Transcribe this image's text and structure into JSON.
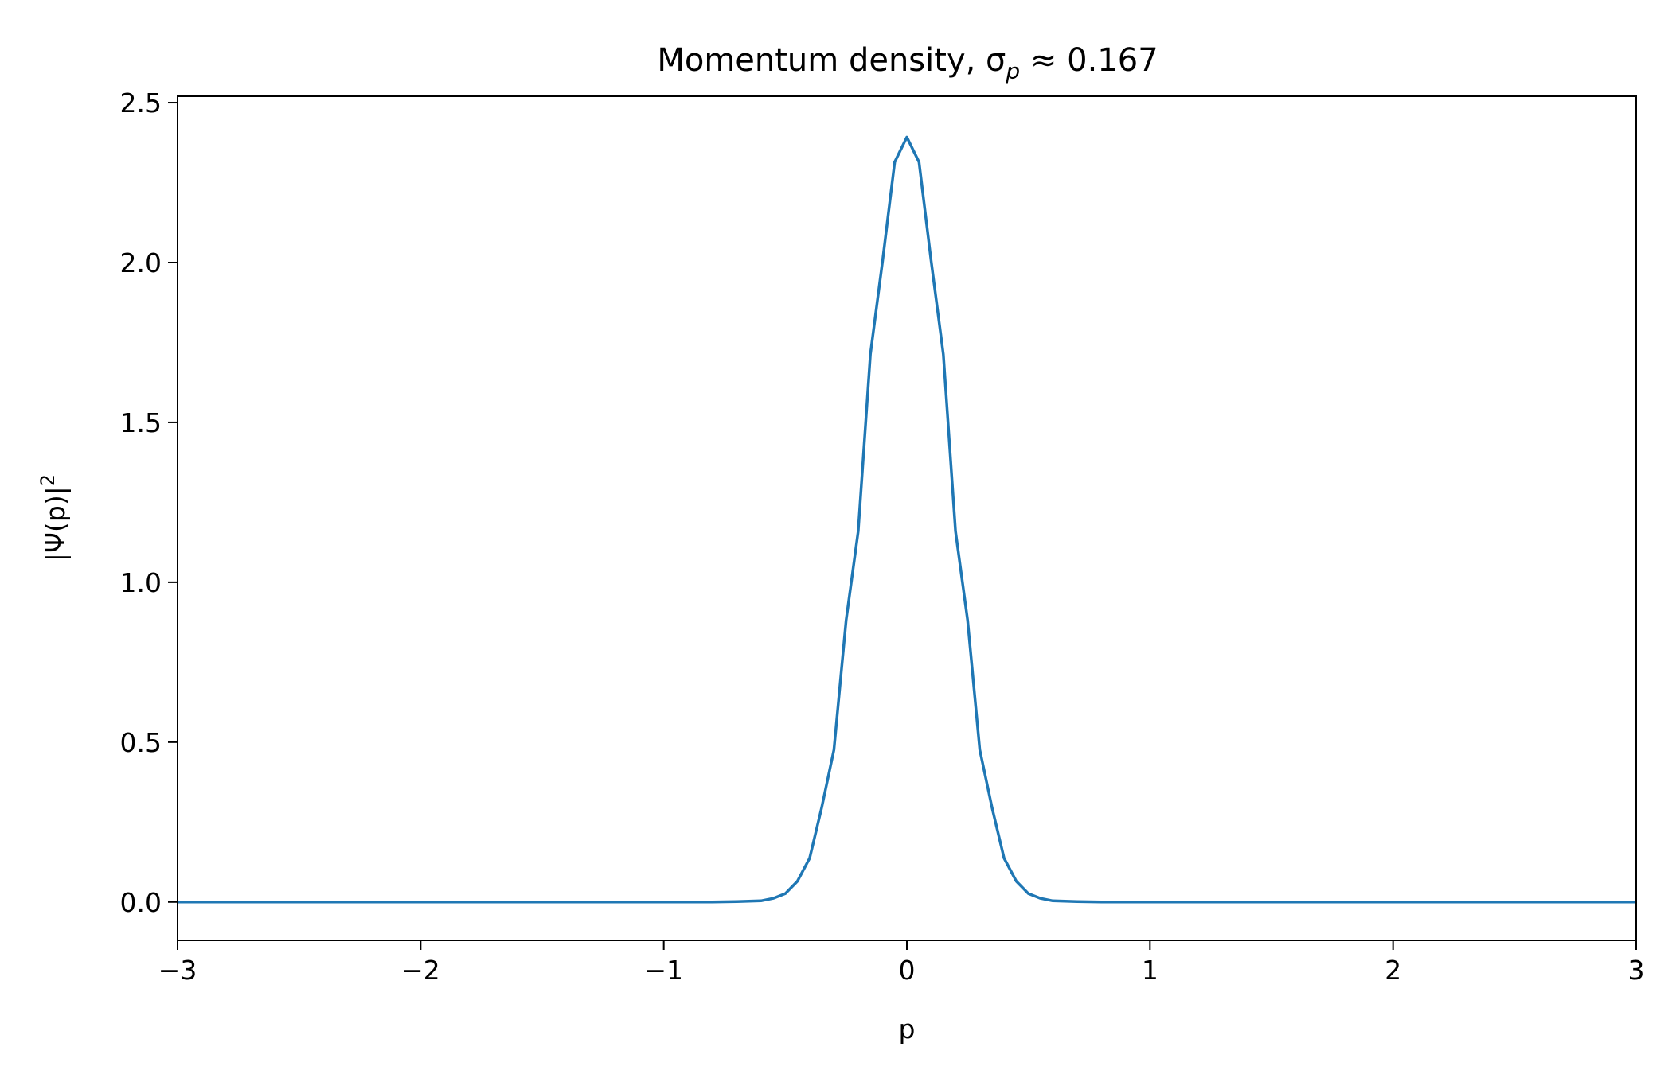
{
  "chart_data": {
    "type": "line",
    "title": "Momentum density, σ",
    "title_subscript": "p",
    "title_suffix": " ≈ 0.167",
    "xlabel": "p",
    "ylabel": "|Ψ(p)|",
    "ylabel_superscript": "2",
    "xlim": [
      -3,
      3
    ],
    "ylim": [
      -0.12,
      2.52
    ],
    "xticks": [
      -3,
      -2,
      -1,
      0,
      1,
      2,
      3
    ],
    "xtick_labels": [
      "−3",
      "−2",
      "−1",
      "0",
      "1",
      "2",
      "3"
    ],
    "yticks": [
      0.0,
      0.5,
      1.0,
      1.5,
      2.0,
      2.5
    ],
    "ytick_labels": [
      "0.0",
      "0.5",
      "1.0",
      "1.5",
      "2.0",
      "2.5"
    ],
    "grid": false,
    "line_color": "#1f77b4",
    "series": [
      {
        "x": [
          -3.0,
          -1.0,
          -0.8,
          -0.7,
          -0.65,
          -0.6,
          -0.55,
          -0.5,
          -0.45,
          -0.4,
          -0.35,
          -0.3,
          -0.25,
          -0.2,
          -0.15,
          -0.1,
          -0.05,
          0.0,
          0.05,
          0.1,
          0.15,
          0.2,
          0.25,
          0.3,
          0.35,
          0.4,
          0.45,
          0.5,
          0.55,
          0.6,
          0.65,
          0.7,
          0.8,
          1.0,
          3.0
        ],
        "y": [
          0.0,
          0.0,
          0.0,
          0.0012,
          0.0024,
          0.0036,
          0.0114,
          0.026,
          0.065,
          0.137,
          0.296,
          0.476,
          0.881,
          1.16,
          1.713,
          2.005,
          2.314,
          2.392,
          2.314,
          2.005,
          1.713,
          1.16,
          0.881,
          0.476,
          0.296,
          0.137,
          0.065,
          0.026,
          0.0114,
          0.0036,
          0.0024,
          0.0012,
          0.0,
          0.0,
          0.0
        ]
      }
    ]
  }
}
